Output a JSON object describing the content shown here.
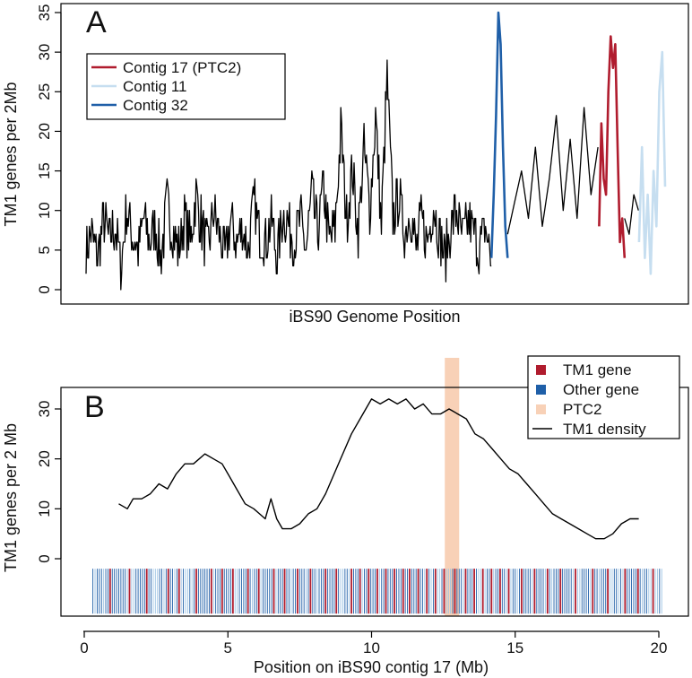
{
  "chart_data": [
    {
      "panel": "A",
      "type": "line",
      "title": "",
      "xlabel": "iBS90 Genome Position",
      "ylabel": "TM1 genes per 2Mb",
      "ylim": [
        0,
        35
      ],
      "yticks": [
        0,
        5,
        10,
        15,
        20,
        25,
        30,
        35
      ],
      "xlim": [
        0,
        1000
      ],
      "xticks_shown": false,
      "legend_position": "top-left",
      "series": [
        {
          "name": "Genome (other contigs)",
          "color": "#000000",
          "in_legend": false,
          "x": [
            0,
            10,
            20,
            30,
            40,
            50,
            60,
            70,
            80,
            90,
            100,
            110,
            120,
            130,
            140,
            150,
            160,
            170,
            180,
            190,
            200,
            210,
            220,
            230,
            240,
            250,
            260,
            270,
            280,
            290,
            300,
            310,
            320,
            330,
            340,
            350,
            360,
            370,
            380,
            390,
            400,
            410,
            420,
            430,
            440,
            450,
            460,
            470,
            480,
            490,
            500,
            510,
            520,
            530,
            540,
            550,
            560,
            570,
            580,
            590,
            600,
            610,
            620,
            630,
            640,
            650,
            660,
            670,
            680,
            690,
            700
          ],
          "y": [
            5,
            7,
            4,
            9,
            6,
            8,
            3,
            10,
            7,
            5,
            9,
            6,
            8,
            4,
            11,
            7,
            5,
            9,
            6,
            12,
            8,
            5,
            10,
            7,
            4,
            9,
            6,
            8,
            5,
            11,
            7,
            6,
            9,
            4,
            10,
            8,
            6,
            9,
            5,
            12,
            7,
            13,
            6,
            8,
            20,
            9,
            15,
            7,
            18,
            10,
            22,
            8,
            27,
            9,
            12,
            7,
            10,
            5,
            9,
            6,
            11,
            7,
            4,
            8,
            10,
            6,
            9,
            7,
            5,
            8,
            3
          ],
          "fine_noise": true
        },
        {
          "name": "Contig 32",
          "color": "#1f5fa8",
          "in_legend": true,
          "x": [
            700,
            704,
            708,
            712,
            716,
            720,
            724,
            728
          ],
          "y": [
            4,
            12,
            22,
            35,
            31,
            18,
            8,
            4
          ]
        },
        {
          "name": "Genome (other contigs, cont.)",
          "color": "#000000",
          "in_legend": false,
          "x": [
            728,
            740,
            752,
            764,
            776,
            788,
            800,
            812,
            824,
            836,
            848,
            860,
            872,
            884
          ],
          "y": [
            7,
            11,
            15,
            9,
            18,
            8,
            14,
            22,
            10,
            19,
            9,
            23,
            12,
            18
          ]
        },
        {
          "name": "Contig 17 (PTC2)",
          "color": "#b01c2e",
          "in_legend": true,
          "x": [
            886,
            890,
            894,
            898,
            902,
            906,
            910,
            914,
            918,
            922,
            926,
            930
          ],
          "y": [
            8,
            21,
            14,
            12,
            25,
            32,
            28,
            31,
            18,
            6,
            9,
            4
          ]
        },
        {
          "name": "Genome (other contigs, tail)",
          "color": "#000000",
          "in_legend": false,
          "x": [
            930,
            938,
            946,
            954
          ],
          "y": [
            9,
            7,
            12,
            10
          ]
        },
        {
          "name": "Contig 11",
          "color": "#c6def0",
          "in_legend": true,
          "x": [
            955,
            960,
            965,
            970,
            975,
            980,
            985,
            990,
            995,
            1000
          ],
          "y": [
            6,
            18,
            4,
            12,
            2,
            15,
            8,
            25,
            30,
            13
          ]
        }
      ],
      "legend": [
        {
          "label": "Contig 17 (PTC2)",
          "color": "#b01c2e"
        },
        {
          "label": "Contig 11",
          "color": "#c6def0"
        },
        {
          "label": "Contig 32",
          "color": "#1f5fa8"
        }
      ]
    },
    {
      "panel": "B",
      "type": "line",
      "title": "",
      "xlabel": "Position on iBS90 contig 17 (Mb)",
      "ylabel": "TM1 genes per 2 Mb",
      "xlim": [
        -0.8,
        21
      ],
      "ylim": [
        -12,
        34
      ],
      "xticks": [
        0,
        5,
        10,
        15,
        20
      ],
      "yticks": [
        0,
        10,
        20,
        30
      ],
      "legend_position": "top-right",
      "series": [
        {
          "name": "TM1 density",
          "color": "#000000",
          "x": [
            1.2,
            1.5,
            1.7,
            2.0,
            2.3,
            2.6,
            2.9,
            3.2,
            3.5,
            3.8,
            4.0,
            4.2,
            4.5,
            4.8,
            5.0,
            5.3,
            5.6,
            5.9,
            6.1,
            6.3,
            6.5,
            6.7,
            6.9,
            7.2,
            7.5,
            7.8,
            8.1,
            8.4,
            8.7,
            9.0,
            9.3,
            9.6,
            9.8,
            10.0,
            10.3,
            10.6,
            10.9,
            11.2,
            11.5,
            11.8,
            12.1,
            12.4,
            12.7,
            13.0,
            13.3,
            13.6,
            13.9,
            14.2,
            14.5,
            14.8,
            15.1,
            15.4,
            15.7,
            16.0,
            16.3,
            16.6,
            16.9,
            17.2,
            17.5,
            17.8,
            18.1,
            18.4,
            18.7,
            19.0,
            19.3
          ],
          "y": [
            11,
            10,
            12,
            12,
            13,
            15,
            14,
            17,
            19,
            19,
            20,
            21,
            20,
            19,
            17,
            14,
            11,
            10,
            9,
            8,
            12,
            8,
            6,
            6,
            7,
            9,
            10,
            13,
            17,
            21,
            25,
            28,
            30,
            32,
            31,
            32,
            31,
            32,
            30,
            31,
            29,
            29,
            30,
            29,
            28,
            25,
            24,
            22,
            20,
            18,
            17,
            15,
            13,
            11,
            9,
            8,
            7,
            6,
            5,
            4,
            4,
            5,
            7,
            8,
            8
          ]
        }
      ],
      "highlight_band": {
        "label": "PTC2",
        "x_start": 12.55,
        "x_end": 13.05,
        "color": "#f8d1b7"
      },
      "gene_track": {
        "y_range": [
          -11,
          -2
        ],
        "x_start": 0.3,
        "x_end": 20.1,
        "classes": [
          {
            "label": "TM1 gene",
            "color": "#b01c2e"
          },
          {
            "label": "Other gene",
            "color": "#1f5fa8"
          }
        ],
        "tm1_gene_positions": [
          0.9,
          1.6,
          2.2,
          2.9,
          3.3,
          3.9,
          4.4,
          4.8,
          5.2,
          5.7,
          6.1,
          6.6,
          7.0,
          7.4,
          7.9,
          8.4,
          8.8,
          9.3,
          9.6,
          9.9,
          10.2,
          10.5,
          10.8,
          11.1,
          11.3,
          11.6,
          11.9,
          12.2,
          12.5,
          12.9,
          13.3,
          13.6,
          13.9,
          14.2,
          14.5,
          14.8,
          15.2,
          15.7,
          16.1,
          16.6,
          17.1,
          17.7,
          18.2,
          18.8,
          19.3,
          19.8
        ]
      },
      "legend": [
        {
          "label": "TM1 gene",
          "color": "#b01c2e",
          "kind": "square"
        },
        {
          "label": "Other gene",
          "color": "#1f5fa8",
          "kind": "square"
        },
        {
          "label": "PTC2",
          "color": "#f8d1b7",
          "kind": "square"
        },
        {
          "label": "TM1 density",
          "color": "#000000",
          "kind": "line"
        }
      ]
    }
  ],
  "panel_letters": {
    "a": "A",
    "b": "B"
  }
}
